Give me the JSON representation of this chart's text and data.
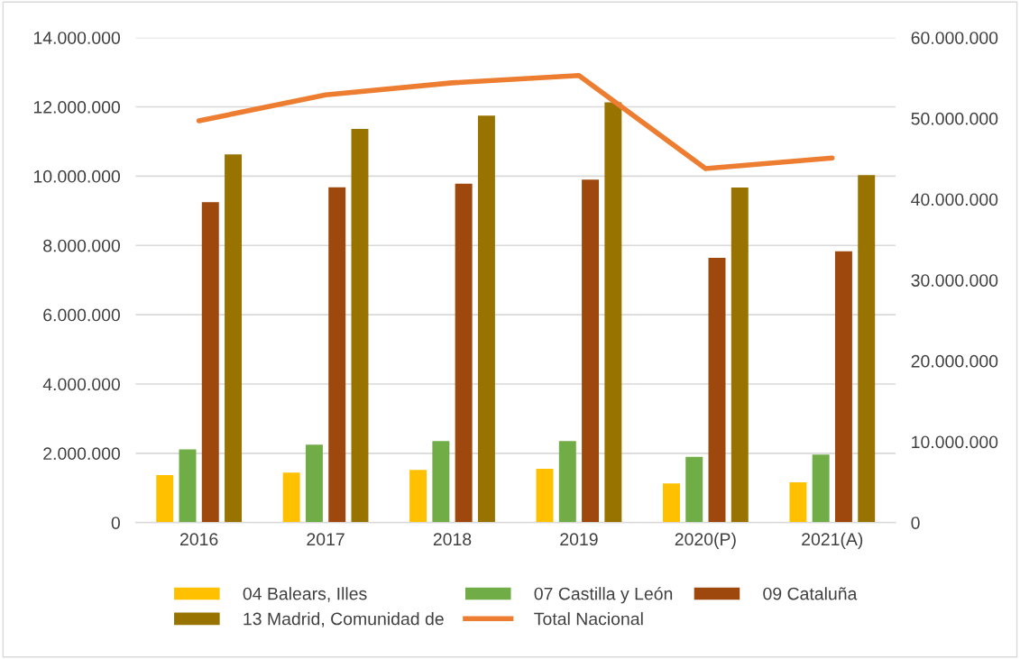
{
  "chart_data": {
    "type": "bar",
    "categories": [
      "2016",
      "2017",
      "2018",
      "2019",
      "2020(P)",
      "2021(A)"
    ],
    "series": [
      {
        "name": "04 Balears, Illes",
        "color": "#ffc000",
        "values": [
          1370000,
          1440000,
          1520000,
          1550000,
          1130000,
          1160000
        ]
      },
      {
        "name": "07 Castilla y León",
        "color": "#70ad47",
        "values": [
          2110000,
          2250000,
          2350000,
          2350000,
          1900000,
          1960000
        ]
      },
      {
        "name": "09 Cataluña",
        "color": "#9e480e",
        "values": [
          9250000,
          9680000,
          9780000,
          9900000,
          7640000,
          7830000
        ]
      },
      {
        "name": "13 Madrid, Comunidad de",
        "color": "#997300",
        "values": [
          10630000,
          11360000,
          11750000,
          12130000,
          9670000,
          10030000
        ]
      },
      {
        "name": "Total Nacional",
        "type": "line",
        "axis": "y2",
        "color": "#ed7d31",
        "values": [
          49700000,
          52900000,
          54400000,
          55300000,
          43800000,
          45100000
        ]
      }
    ],
    "ylim": [
      0,
      14000000
    ],
    "yticks": [
      {
        "value": 0,
        "label": "0"
      },
      {
        "value": 2000000,
        "label": "2.000.000"
      },
      {
        "value": 4000000,
        "label": "4.000.000"
      },
      {
        "value": 6000000,
        "label": "6.000.000"
      },
      {
        "value": 8000000,
        "label": "8.000.000"
      },
      {
        "value": 10000000,
        "label": "10.000.000"
      },
      {
        "value": 12000000,
        "label": "12.000.000"
      },
      {
        "value": 14000000,
        "label": "14.000.000"
      }
    ],
    "y2lim": [
      0,
      60000000
    ],
    "y2ticks": [
      {
        "value": 0,
        "label": "0"
      },
      {
        "value": 10000000,
        "label": "10.000.000"
      },
      {
        "value": 20000000,
        "label": "20.000.000"
      },
      {
        "value": 30000000,
        "label": "30.000.000"
      },
      {
        "value": 40000000,
        "label": "40.000.000"
      },
      {
        "value": 50000000,
        "label": "50.000.000"
      },
      {
        "value": 60000000,
        "label": "60.000.000"
      }
    ],
    "grid": "y",
    "legend": "bottom"
  }
}
